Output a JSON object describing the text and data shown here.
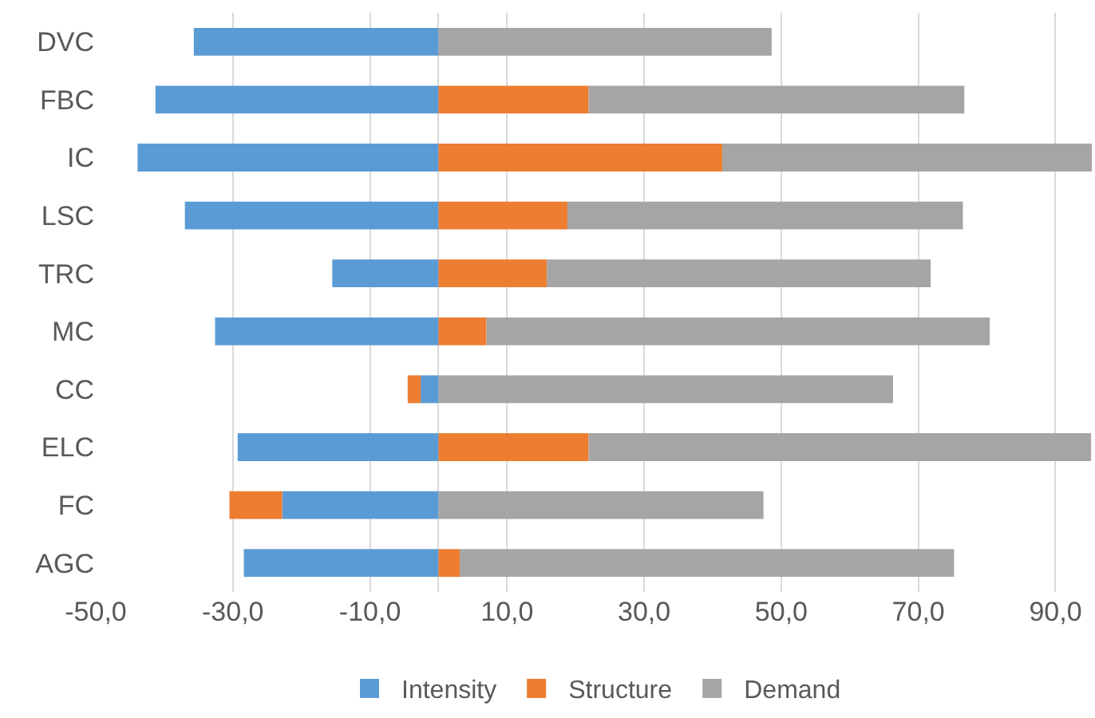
{
  "chart_data": {
    "type": "bar",
    "orientation": "horizontal",
    "stacked": true,
    "categories": [
      "DVC",
      "FBC",
      "IC",
      "LSC",
      "TRC",
      "MC",
      "CC",
      "ELC",
      "FC",
      "AGC"
    ],
    "series": [
      {
        "name": "Intensity",
        "color": "#5b9bd5",
        "values": [
          -35.7,
          -41.3,
          -43.9,
          -37.0,
          -15.5,
          -32.6,
          -2.6,
          -29.3,
          -22.8,
          -28.4
        ]
      },
      {
        "name": "Structure",
        "color": "#ed7d31",
        "values": [
          0,
          21.9,
          41.4,
          18.8,
          15.8,
          7.0,
          -1.9,
          21.9,
          -7.7,
          3.1
        ]
      },
      {
        "name": "Demand",
        "color": "#a5a5a5",
        "values": [
          48.6,
          54.8,
          53.9,
          57.7,
          56.0,
          73.4,
          66.3,
          73.3,
          47.4,
          72.1
        ]
      }
    ],
    "xlim": [
      -50,
      95.3
    ],
    "xticks": [
      {
        "value": -50,
        "label": "-50,0"
      },
      {
        "value": -30,
        "label": "-30,0"
      },
      {
        "value": -10,
        "label": "-10,0"
      },
      {
        "value": 10,
        "label": "10,0"
      },
      {
        "value": 30,
        "label": "30,0"
      },
      {
        "value": 50,
        "label": "50,0"
      },
      {
        "value": 70,
        "label": "70,0"
      },
      {
        "value": 90,
        "label": "90,0"
      }
    ],
    "grid": "x",
    "legend": "bottom"
  }
}
